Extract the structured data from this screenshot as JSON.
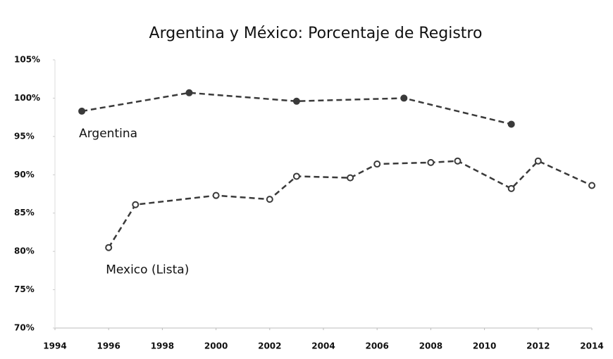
{
  "chart_data": {
    "type": "line",
    "title": "Argentina y México: Porcentaje de Registro",
    "series": [
      {
        "name": "Argentina",
        "color": "#3a3a3a",
        "x": [
          1995,
          1999,
          2003,
          2007,
          2011
        ],
        "values": [
          98.3,
          100.7,
          99.6,
          100.0,
          96.6
        ]
      },
      {
        "name": "Mexico (Lista)",
        "color": "#3a3a3a",
        "x": [
          1996,
          1997,
          2000,
          2002,
          2003,
          2005,
          2006,
          2008,
          2009,
          2011,
          2012,
          2014
        ],
        "values": [
          80.5,
          86.1,
          87.3,
          86.8,
          89.8,
          89.6,
          91.4,
          91.6,
          91.8,
          88.2,
          91.8,
          88.6
        ]
      }
    ],
    "xlim": [
      1994,
      2014
    ],
    "xticks": [
      1994,
      1996,
      1998,
      2000,
      2002,
      2004,
      2006,
      2008,
      2010,
      2012,
      2014
    ],
    "ylim": [
      70,
      105
    ],
    "yticks": [
      {
        "value": 70,
        "label": "70%"
      },
      {
        "value": 75,
        "label": "75%"
      },
      {
        "value": 80,
        "label": "80%"
      },
      {
        "value": 85,
        "label": "85%"
      },
      {
        "value": 90,
        "label": "90%"
      },
      {
        "value": 95,
        "label": "95%"
      },
      {
        "value": 100,
        "label": "100%"
      },
      {
        "value": 105,
        "label": "105%"
      }
    ],
    "grid": false
  }
}
